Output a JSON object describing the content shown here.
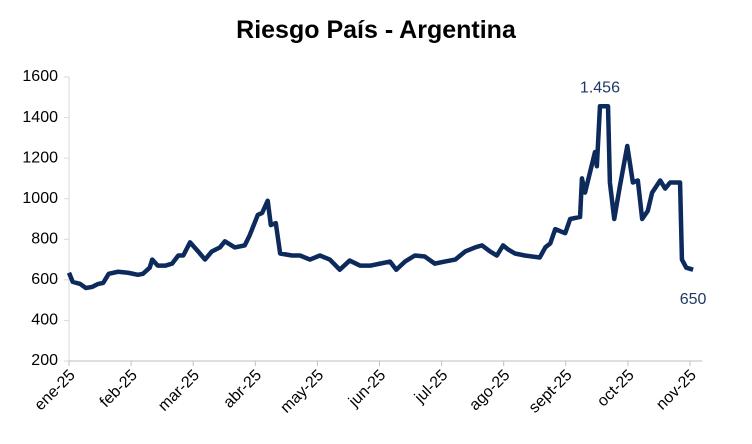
{
  "chart_data": {
    "type": "line",
    "title": "Riesgo País - Argentina",
    "x": [
      0,
      0.06,
      0.18,
      0.27,
      0.37,
      0.47,
      0.55,
      0.64,
      0.79,
      0.95,
      1.11,
      1.19,
      1.3,
      1.34,
      1.43,
      1.55,
      1.66,
      1.76,
      1.84,
      1.95,
      2.08,
      2.19,
      2.3,
      2.43,
      2.51,
      2.67,
      2.83,
      2.91,
      3.04,
      3.11,
      3.2,
      3.25,
      3.33,
      3.4,
      3.59,
      3.72,
      3.88,
      4.04,
      4.2,
      4.36,
      4.52,
      4.69,
      4.85,
      5.01,
      5.17,
      5.27,
      5.41,
      5.57,
      5.73,
      5.89,
      6.05,
      6.22,
      6.38,
      6.54,
      6.65,
      6.78,
      6.89,
      6.99,
      7.07,
      7.18,
      7.34,
      7.58,
      7.67,
      7.75,
      7.83,
      7.99,
      8.07,
      8.23,
      8.26,
      8.31,
      8.39,
      8.47,
      8.5,
      8.55,
      8.68,
      8.71,
      8.78,
      8.87,
      8.99,
      9.08,
      9.16,
      9.23,
      9.32,
      9.39,
      9.52,
      9.6,
      9.68,
      9.84,
      9.87,
      9.94,
      10.05
    ],
    "values": [
      635,
      590,
      580,
      560,
      565,
      580,
      585,
      630,
      640,
      635,
      625,
      630,
      660,
      700,
      670,
      670,
      680,
      720,
      720,
      785,
      740,
      700,
      740,
      760,
      790,
      760,
      770,
      820,
      920,
      930,
      990,
      870,
      880,
      730,
      720,
      720,
      700,
      720,
      700,
      650,
      695,
      670,
      670,
      680,
      690,
      650,
      690,
      720,
      715,
      680,
      690,
      700,
      740,
      760,
      770,
      740,
      720,
      770,
      750,
      730,
      720,
      710,
      760,
      780,
      850,
      830,
      900,
      910,
      1100,
      1030,
      1130,
      1230,
      1160,
      1456,
      1456,
      1080,
      900,
      1060,
      1260,
      1080,
      1090,
      900,
      940,
      1030,
      1090,
      1050,
      1080,
      1080,
      700,
      660,
      650
    ],
    "value_labels": [
      null,
      null,
      null,
      null,
      null,
      null,
      null,
      null,
      null,
      null,
      null,
      null,
      null,
      null,
      null,
      null,
      null,
      null,
      null,
      null,
      null,
      null,
      null,
      null,
      null,
      null,
      null,
      null,
      null,
      null,
      null,
      null,
      null,
      null,
      null,
      null,
      null,
      null,
      null,
      null,
      null,
      null,
      null,
      null,
      null,
      null,
      null,
      null,
      null,
      null,
      null,
      null,
      null,
      null,
      null,
      null,
      null,
      null,
      null,
      null,
      null,
      null,
      null,
      null,
      null,
      null,
      null,
      null,
      null,
      null,
      null,
      null,
      null,
      "1.456",
      null,
      null,
      null,
      null,
      null,
      null,
      null,
      null,
      null,
      null,
      null,
      null,
      null,
      null,
      null,
      null,
      "650"
    ],
    "color": "#0d2a5c",
    "xlim": [
      0,
      10.2
    ],
    "xticks": [
      {
        "value": 0,
        "label": "ene-25"
      },
      {
        "value": 1,
        "label": "feb-25"
      },
      {
        "value": 2,
        "label": "mar-25"
      },
      {
        "value": 3,
        "label": "abr-25"
      },
      {
        "value": 4,
        "label": "may-25"
      },
      {
        "value": 5,
        "label": "jun-25"
      },
      {
        "value": 6,
        "label": "jul-25"
      },
      {
        "value": 7,
        "label": "ago-25"
      },
      {
        "value": 8,
        "label": "sept-25"
      },
      {
        "value": 9,
        "label": "oct-25"
      },
      {
        "value": 10,
        "label": "nov-25"
      }
    ],
    "ylim": [
      200,
      1600
    ],
    "yticks": [
      200,
      400,
      600,
      800,
      1000,
      1200,
      1400,
      1600
    ],
    "grid": false
  }
}
